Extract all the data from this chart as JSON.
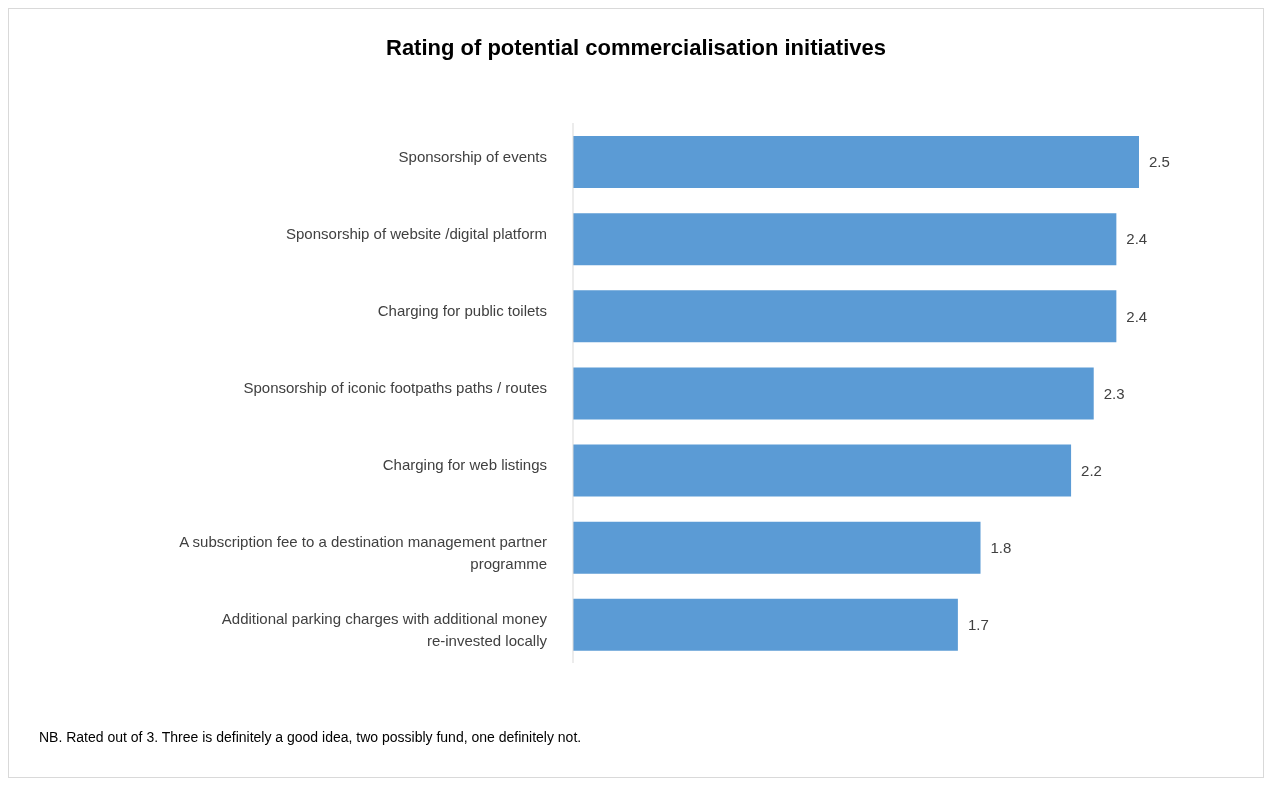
{
  "chart_data": {
    "type": "bar",
    "orientation": "horizontal",
    "title": "Rating of potential commercialisation initiatives",
    "categories": [
      "Sponsorship of events",
      "Sponsorship of website /digital platform",
      "Charging for public toilets",
      "Sponsorship of iconic footpaths paths / routes",
      "Charging for web listings",
      "A subscription fee to a destination management partner programme",
      "Additional parking charges with additional money re-invested locally"
    ],
    "values": [
      2.5,
      2.4,
      2.4,
      2.3,
      2.2,
      1.8,
      1.7
    ],
    "color": "#5b9bd5",
    "data_labels": true,
    "annotations": [
      "NB. Rated out of 3. Three is definitely a good idea, two possibly fund, one definitely not."
    ]
  }
}
